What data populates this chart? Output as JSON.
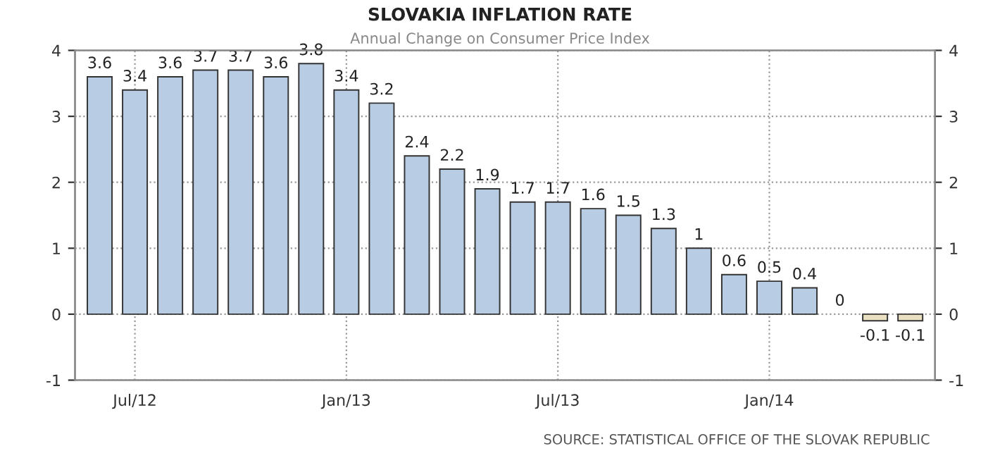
{
  "chart_data": {
    "type": "bar",
    "title": "SLOVAKIA INFLATION RATE",
    "subtitle": "Annual Change on Consumer Price Index",
    "categories": [
      null,
      "Jul/12",
      null,
      null,
      null,
      null,
      null,
      "Jan/13",
      null,
      null,
      null,
      null,
      null,
      "Jul/13",
      null,
      null,
      null,
      null,
      null,
      "Jan/14",
      null,
      null,
      null,
      null
    ],
    "series": [
      {
        "color": "#b8cce4",
        "values": [
          3.6,
          3.4,
          3.6,
          3.7,
          3.7,
          3.6,
          3.8,
          3.4,
          3.2,
          2.4,
          2.2,
          1.9,
          1.7,
          1.7,
          1.6,
          1.5,
          1.3,
          1,
          0.6,
          0.5,
          0.4,
          0,
          -0.1,
          -0.1
        ],
        "colors": [
          null,
          null,
          null,
          null,
          null,
          null,
          null,
          null,
          null,
          null,
          null,
          null,
          null,
          null,
          null,
          null,
          null,
          null,
          null,
          null,
          null,
          null,
          "#e8e0c0",
          "#e8e0c0"
        ]
      }
    ],
    "ylim": [
      -1,
      4
    ],
    "yticks": [
      -1,
      0,
      1,
      2,
      3,
      4
    ],
    "y2lim": [
      -1,
      4
    ],
    "y2ticks": [
      -1,
      0,
      1,
      2,
      3,
      4
    ],
    "data_labels": true,
    "grid": true,
    "annotations": [
      "SOURCE: STATISTICAL OFFICE OF THE SLOVAK REPUBLIC"
    ]
  }
}
